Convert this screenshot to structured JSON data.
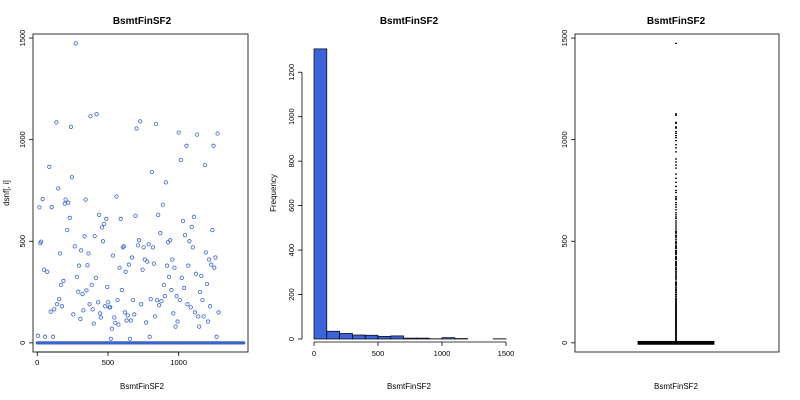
{
  "chart_data": [
    {
      "type": "scatter",
      "title": "BsmtFinSF2",
      "xlabel": "BsmtFinSF2",
      "ylabel": "dsnf[, i]",
      "xlim": [
        -30,
        1490
      ],
      "ylim": [
        -45,
        1520
      ],
      "xticks": [
        0,
        500,
        1000,
        1500
      ],
      "yticks": [
        0,
        500,
        1000,
        1500
      ],
      "point_color": "#3a64c8",
      "zero_band": {
        "y": 0,
        "x_from": 0,
        "x_to": 1460
      },
      "points": [
        [
          5,
          35
        ],
        [
          15,
          667
        ],
        [
          22,
          490
        ],
        [
          28,
          498
        ],
        [
          38,
          708
        ],
        [
          48,
          360
        ],
        [
          55,
          30
        ],
        [
          70,
          350
        ],
        [
          85,
          866
        ],
        [
          95,
          153
        ],
        [
          102,
          668
        ],
        [
          112,
          30
        ],
        [
          120,
          165
        ],
        [
          135,
          1085
        ],
        [
          140,
          190
        ],
        [
          148,
          760
        ],
        [
          155,
          215
        ],
        [
          162,
          440
        ],
        [
          168,
          285
        ],
        [
          175,
          180
        ],
        [
          185,
          305
        ],
        [
          195,
          685
        ],
        [
          200,
          705
        ],
        [
          212,
          555
        ],
        [
          220,
          690
        ],
        [
          230,
          615
        ],
        [
          238,
          1063
        ],
        [
          245,
          815
        ],
        [
          255,
          140
        ],
        [
          265,
          475
        ],
        [
          272,
          1474
        ],
        [
          280,
          325
        ],
        [
          290,
          252
        ],
        [
          296,
          380
        ],
        [
          305,
          118
        ],
        [
          310,
          455
        ],
        [
          320,
          240
        ],
        [
          326,
          160
        ],
        [
          335,
          524
        ],
        [
          342,
          705
        ],
        [
          348,
          258
        ],
        [
          355,
          382
        ],
        [
          362,
          440
        ],
        [
          370,
          190
        ],
        [
          376,
          1115
        ],
        [
          385,
          285
        ],
        [
          392,
          165
        ],
        [
          400,
          95
        ],
        [
          406,
          525
        ],
        [
          415,
          320
        ],
        [
          420,
          1125
        ],
        [
          430,
          200
        ],
        [
          438,
          630
        ],
        [
          445,
          145
        ],
        [
          450,
          125
        ],
        [
          458,
          568
        ],
        [
          465,
          500
        ],
        [
          472,
          585
        ],
        [
          480,
          180
        ],
        [
          488,
          610
        ],
        [
          495,
          275
        ],
        [
          502,
          200
        ],
        [
          510,
          175
        ],
        [
          516,
          175
        ],
        [
          520,
          20
        ],
        [
          528,
          70
        ],
        [
          535,
          430
        ],
        [
          545,
          125
        ],
        [
          552,
          98
        ],
        [
          560,
          720
        ],
        [
          568,
          210
        ],
        [
          574,
          90
        ],
        [
          582,
          370
        ],
        [
          590,
          610
        ],
        [
          598,
          260
        ],
        [
          605,
          470
        ],
        [
          612,
          475
        ],
        [
          620,
          150
        ],
        [
          625,
          350
        ],
        [
          632,
          110
        ],
        [
          640,
          135
        ],
        [
          648,
          385
        ],
        [
          655,
          20
        ],
        [
          662,
          110
        ],
        [
          670,
          420
        ],
        [
          678,
          210
        ],
        [
          686,
          140
        ],
        [
          695,
          625
        ],
        [
          702,
          1055
        ],
        [
          712,
          480
        ],
        [
          720,
          505
        ],
        [
          728,
          1090
        ],
        [
          735,
          190
        ],
        [
          745,
          360
        ],
        [
          752,
          470
        ],
        [
          760,
          410
        ],
        [
          770,
          100
        ],
        [
          778,
          400
        ],
        [
          788,
          485
        ],
        [
          795,
          30
        ],
        [
          802,
          215
        ],
        [
          810,
          840
        ],
        [
          818,
          470
        ],
        [
          825,
          390
        ],
        [
          832,
          130
        ],
        [
          840,
          1078
        ],
        [
          848,
          210
        ],
        [
          855,
          630
        ],
        [
          862,
          185
        ],
        [
          870,
          540
        ],
        [
          878,
          205
        ],
        [
          888,
          680
        ],
        [
          895,
          285
        ],
        [
          902,
          230
        ],
        [
          910,
          790
        ],
        [
          918,
          380
        ],
        [
          925,
          495
        ],
        [
          932,
          325
        ],
        [
          940,
          505
        ],
        [
          948,
          260
        ],
        [
          955,
          410
        ],
        [
          962,
          145
        ],
        [
          970,
          370
        ],
        [
          978,
          80
        ],
        [
          985,
          230
        ],
        [
          992,
          105
        ],
        [
          1000,
          1035
        ],
        [
          1008,
          210
        ],
        [
          1015,
          900
        ],
        [
          1022,
          320
        ],
        [
          1030,
          600
        ],
        [
          1038,
          270
        ],
        [
          1045,
          530
        ],
        [
          1055,
          970
        ],
        [
          1062,
          190
        ],
        [
          1068,
          380
        ],
        [
          1076,
          500
        ],
        [
          1085,
          175
        ],
        [
          1092,
          570
        ],
        [
          1100,
          470
        ],
        [
          1108,
          620
        ],
        [
          1115,
          150
        ],
        [
          1122,
          340
        ],
        [
          1130,
          1025
        ],
        [
          1138,
          130
        ],
        [
          1145,
          80
        ],
        [
          1152,
          250
        ],
        [
          1160,
          330
        ],
        [
          1168,
          210
        ],
        [
          1176,
          130
        ],
        [
          1185,
          875
        ],
        [
          1192,
          445
        ],
        [
          1200,
          290
        ],
        [
          1208,
          105
        ],
        [
          1215,
          410
        ],
        [
          1222,
          180
        ],
        [
          1230,
          385
        ],
        [
          1238,
          555
        ],
        [
          1246,
          970
        ],
        [
          1252,
          370
        ],
        [
          1260,
          420
        ],
        [
          1268,
          30
        ],
        [
          1275,
          1030
        ],
        [
          1282,
          150
        ]
      ]
    },
    {
      "type": "bar",
      "title": "BsmtFinSF2",
      "xlabel": "BsmtFinSF2",
      "ylabel": "Frequency",
      "xlim": [
        0,
        1500
      ],
      "ylim": [
        0,
        1300
      ],
      "xticks": [
        0,
        500,
        1000,
        1500
      ],
      "yticks": [
        0,
        200,
        400,
        600,
        800,
        1000,
        1200
      ],
      "bar_color": "#3a64d8",
      "bin_edges": [
        0,
        100,
        200,
        300,
        400,
        500,
        600,
        700,
        800,
        900,
        1000,
        1100,
        1200,
        1300,
        1400,
        1500
      ],
      "values": [
        1305,
        35,
        25,
        18,
        17,
        12,
        14,
        4,
        4,
        1,
        6,
        2,
        0,
        0,
        1
      ]
    },
    {
      "type": "box",
      "title": "BsmtFinSF2",
      "xlabel": "BsmtFinSF2",
      "ylim": [
        -45,
        1520
      ],
      "yticks": [
        0,
        500,
        1000,
        1500
      ],
      "box": {
        "q1": 0,
        "median": 0,
        "q3": 0,
        "whisker_low": 0,
        "whisker_high": 0
      },
      "outliers": [
        1474,
        1127,
        1120,
        1085,
        1080,
        1063,
        1057,
        1040,
        1031,
        1020,
        1010,
        995,
        975,
        960,
        940,
        905,
        890,
        875,
        860,
        830,
        810,
        790,
        770,
        750,
        740,
        720,
        712,
        705,
        690,
        680,
        668,
        655,
        640,
        630,
        620,
        612,
        600,
        590,
        580,
        570,
        560,
        550,
        545,
        540,
        530,
        525,
        520,
        510,
        500,
        495,
        490,
        482,
        475,
        470,
        465,
        455,
        450,
        445,
        440,
        435,
        425,
        420,
        415,
        410,
        400,
        395,
        390,
        385,
        380,
        372,
        365,
        360,
        352,
        345,
        338,
        330,
        325,
        318,
        310,
        300,
        295,
        290,
        285,
        280,
        272,
        265,
        260,
        255,
        248,
        240,
        235,
        228,
        220,
        215,
        210,
        205,
        200,
        195,
        190,
        185,
        180,
        175,
        170,
        165,
        160,
        155,
        150,
        145,
        140,
        135,
        130,
        125,
        120,
        115,
        110,
        105,
        100,
        95,
        90,
        85,
        80,
        75,
        70,
        65,
        60,
        55,
        50,
        45,
        40,
        35,
        30,
        25,
        20,
        15,
        10
      ]
    }
  ]
}
